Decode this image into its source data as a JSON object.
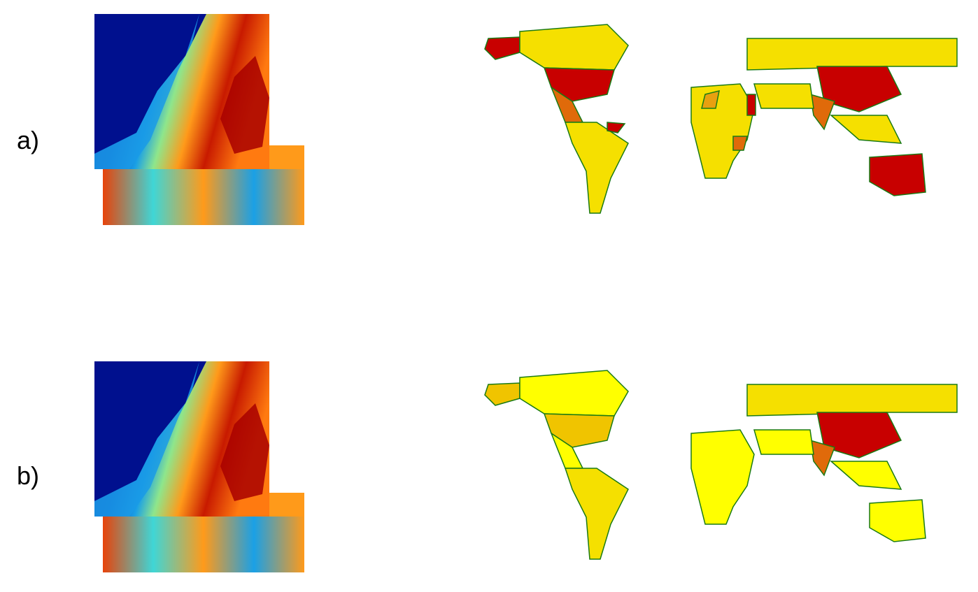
{
  "panels": [
    {
      "label": "a)"
    },
    {
      "label": "b)"
    }
  ],
  "colors": {
    "ramp": [
      "#00108e",
      "#0a4fc9",
      "#1aa0e6",
      "#3fd6d6",
      "#8ee68c",
      "#f2e03a",
      "#ff9a1a",
      "#e8430a",
      "#b00000"
    ],
    "country_classes": [
      "#ffff00",
      "#f5e000",
      "#f0c400",
      "#e8a010",
      "#e06a0a",
      "#c80000"
    ],
    "border": "#1a7a14",
    "background": "#ffffff"
  },
  "icons": [
    "elevation-heatmap",
    "world-choropleth-map"
  ]
}
